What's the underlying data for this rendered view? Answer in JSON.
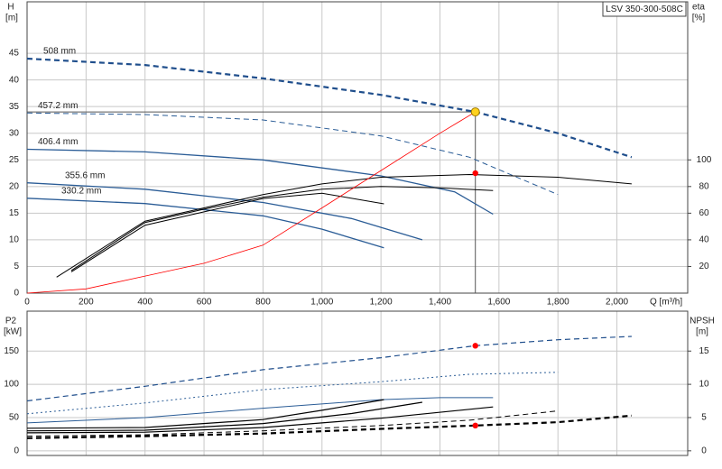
{
  "chart_data": [
    {
      "type": "line",
      "title": "LSV 350-300-508C",
      "y_label": "H",
      "y_unit": "[m]",
      "y2_label": "eta",
      "y2_unit": "[%]",
      "x_label": "Q [m³/h]",
      "xlim": [
        0,
        2240
      ],
      "ylim": [
        0,
        55
      ],
      "y2lim": [
        0,
        220
      ],
      "grid": true,
      "xticks": [
        0,
        200,
        400,
        600,
        800,
        {
          "value": 1000,
          "label": "1,000"
        },
        {
          "value": 1200,
          "label": "1,200"
        },
        {
          "value": 1400,
          "label": "1,400"
        },
        {
          "value": 1600,
          "label": "1,600"
        },
        {
          "value": 1800,
          "label": "1,800"
        },
        {
          "value": 2000,
          "label": "2,000"
        }
      ],
      "yticks": [
        0,
        5,
        10,
        15,
        20,
        25,
        30,
        35,
        40,
        45
      ],
      "y2ticks": [
        20,
        40,
        60,
        80,
        100
      ],
      "series": [
        {
          "name": "508 mm",
          "color": "#1f4e8c",
          "dash": "dashed",
          "width": 2.2,
          "x": [
            0,
            400,
            800,
            1200,
            1520,
            1800,
            2050
          ],
          "values": [
            44,
            42.8,
            40.3,
            37.2,
            34,
            30,
            25.5
          ]
        },
        {
          "name": "457.2 mm",
          "color": "#2a5c96",
          "dash": "dashed",
          "width": 1,
          "x": [
            0,
            400,
            800,
            1200,
            1500,
            1800
          ],
          "values": [
            33.8,
            33.5,
            32.5,
            29.5,
            25.5,
            18.5
          ]
        },
        {
          "name": "406.4 mm",
          "color": "#2a5c96",
          "dash": "solid",
          "width": 1.3,
          "x": [
            0,
            400,
            800,
            1200,
            1450,
            1580
          ],
          "values": [
            27,
            26.5,
            25,
            22,
            19,
            14.8
          ]
        },
        {
          "name": "355.6 mm",
          "color": "#2a5c96",
          "dash": "solid",
          "width": 1.3,
          "x": [
            0,
            400,
            800,
            1100,
            1340
          ],
          "values": [
            20.7,
            19.5,
            17,
            14,
            10
          ]
        },
        {
          "name": "330.2 mm",
          "color": "#2a5c96",
          "dash": "solid",
          "width": 1.3,
          "x": [
            0,
            400,
            800,
            1000,
            1210
          ],
          "values": [
            17.8,
            16.8,
            14.5,
            12,
            8.5
          ]
        },
        {
          "color": "#000000",
          "dash": "solid",
          "width": 1,
          "axis": "y2",
          "x": [
            100,
            400,
            600,
            800,
            1000,
            1200,
            1500,
            1800,
            2050
          ],
          "values": [
            12,
            54,
            64,
            74,
            82,
            87,
            89,
            87,
            82
          ]
        },
        {
          "color": "#000000",
          "dash": "solid",
          "width": 1,
          "axis": "y2",
          "x": [
            150,
            400,
            600,
            800,
            1000,
            1200,
            1400,
            1580
          ],
          "values": [
            17,
            53,
            63,
            72,
            78,
            80,
            79,
            77
          ]
        },
        {
          "color": "#000000",
          "dash": "solid",
          "width": 1,
          "axis": "y2",
          "x": [
            150,
            400,
            600,
            800,
            1000,
            1210
          ],
          "values": [
            16,
            51,
            61,
            71,
            75,
            67
          ]
        },
        {
          "color": "#ff0000",
          "dash": "solid",
          "width": 0.8,
          "x": [
            0,
            200,
            400,
            600,
            800,
            1000,
            1200,
            1400,
            1520
          ],
          "values": [
            0,
            0.8,
            3.2,
            5.6,
            9,
            16,
            23,
            30,
            34
          ]
        }
      ],
      "markers": [
        {
          "x": 1520,
          "y": 34,
          "color": "#ffd21f"
        },
        {
          "x": 1520,
          "y": 90,
          "axis": "y2",
          "color": "#ff0000"
        }
      ]
    },
    {
      "type": "line",
      "y_label": "P2",
      "y_unit": "[kW]",
      "y2_label": "NPSH",
      "y2_unit": "[m]",
      "xlim": [
        0,
        2240
      ],
      "ylim": [
        -7,
        210
      ],
      "y2lim": [
        -0.7,
        21
      ],
      "grid": true,
      "xticks": [
        0,
        200,
        400,
        600,
        800,
        1000,
        1200,
        1400,
        1600,
        1800,
        2000
      ],
      "yticks": [
        0,
        50,
        100,
        150
      ],
      "y2ticks": [
        0,
        5,
        10,
        15
      ],
      "series": [
        {
          "color": "#1f4e8c",
          "dash": "dashed",
          "width": 1.2,
          "x": [
            0,
            400,
            800,
            1200,
            1520,
            1800,
            2050
          ],
          "values": [
            75,
            97,
            122,
            140,
            158,
            167,
            172
          ]
        },
        {
          "color": "#2a5c96",
          "dash": "dotted",
          "width": 1,
          "x": [
            0,
            400,
            800,
            1200,
            1500,
            1800
          ],
          "values": [
            55.6,
            72,
            92,
            104,
            115,
            118
          ]
        },
        {
          "color": "#2a5c96",
          "dash": "solid",
          "width": 1,
          "x": [
            0,
            400,
            800,
            1200,
            1400,
            1580
          ],
          "values": [
            42,
            50,
            64,
            77,
            80,
            80
          ]
        },
        {
          "color": "#000000",
          "dash": "solid",
          "width": 1.2,
          "axis": "y2",
          "x": [
            0,
            400,
            800,
            1000,
            1210
          ],
          "values": [
            3.4,
            3.5,
            4.7,
            6.1,
            7.7
          ]
        },
        {
          "color": "#000000",
          "dash": "solid",
          "width": 1.2,
          "axis": "y2",
          "x": [
            0,
            400,
            800,
            1100,
            1340
          ],
          "values": [
            3,
            3.1,
            4.1,
            5.6,
            7.3
          ]
        },
        {
          "color": "#000000",
          "dash": "solid",
          "width": 1.2,
          "axis": "y2",
          "x": [
            0,
            400,
            800,
            1200,
            1580
          ],
          "values": [
            2.7,
            2.8,
            3.5,
            4.9,
            6.6
          ]
        },
        {
          "color": "#000000",
          "dash": "dashed",
          "width": 1,
          "axis": "y2",
          "x": [
            0,
            400,
            800,
            1200,
            1500,
            1800
          ],
          "values": [
            2.2,
            2.4,
            3,
            3.8,
            4.6,
            6
          ]
        },
        {
          "color": "#000000",
          "dash": "dashed",
          "width": 2.2,
          "axis": "y2",
          "x": [
            0,
            400,
            800,
            1200,
            1520,
            1800,
            2050
          ],
          "values": [
            1.9,
            2.2,
            2.6,
            3.3,
            3.8,
            4.3,
            5.3
          ]
        }
      ],
      "markers": [
        {
          "x": 1520,
          "y": 158,
          "color": "#ff0000"
        },
        {
          "x": 1520,
          "y": 3.8,
          "axis": "y2",
          "color": "#ff0000"
        }
      ]
    }
  ]
}
